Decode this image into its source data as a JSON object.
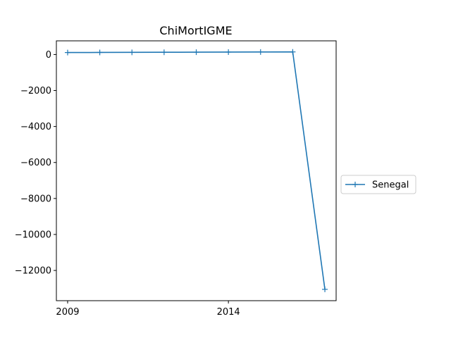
{
  "chart_data": {
    "type": "line",
    "title": "ChiMortIGME",
    "xlabel": "",
    "ylabel": "",
    "x": [
      2009,
      2010,
      2011,
      2012,
      2013,
      2014,
      2015,
      2016,
      2017
    ],
    "series": [
      {
        "name": "Senegal",
        "values": [
          110,
          115,
          120,
          125,
          130,
          135,
          140,
          145,
          -13050
        ],
        "color": "#1f77b4",
        "marker": "plus"
      }
    ],
    "xticks": [
      2009,
      2014
    ],
    "xtick_labels": [
      "2009",
      "2014"
    ],
    "yticks": [
      0,
      -2000,
      -4000,
      -6000,
      -8000,
      -10000,
      -12000
    ],
    "ytick_labels": [
      "0",
      "−2000",
      "−4000",
      "−6000",
      "−8000",
      "−10000",
      "−12000"
    ],
    "xlim": [
      2008.65,
      2017.35
    ],
    "ylim": [
      -13680,
      760
    ],
    "grid": false,
    "legend_position": "outside-right"
  }
}
